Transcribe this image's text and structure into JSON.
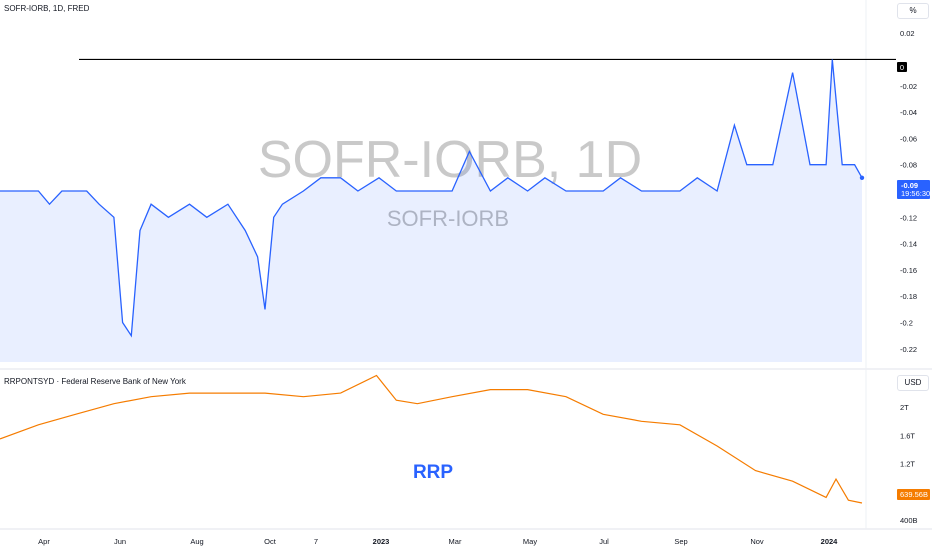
{
  "top_pane": {
    "title": "SOFR-IORB, 1D, FRED",
    "unit": "%",
    "watermark_main": "SOFR-IORB, 1D",
    "watermark_sub": "SOFR-IORB",
    "line_color": "#2962ff",
    "hline_label": "0",
    "price_label": "-0.09",
    "countdown_label": "19:56:30"
  },
  "bottom_pane": {
    "title": "RRPONTSYD · Federal Reserve Bank of New York",
    "unit": "USD",
    "annotation": "RRP",
    "line_color": "#f57c00",
    "price_label": "639.56B"
  },
  "x_axis": {
    "labels": [
      {
        "text": "Apr",
        "bold": false
      },
      {
        "text": "Jun",
        "bold": false
      },
      {
        "text": "Aug",
        "bold": false
      },
      {
        "text": "Oct",
        "bold": false
      },
      {
        "text": "7",
        "bold": false
      },
      {
        "text": "2023",
        "bold": true
      },
      {
        "text": "Mar",
        "bold": false
      },
      {
        "text": "May",
        "bold": false
      },
      {
        "text": "Jul",
        "bold": false
      },
      {
        "text": "Sep",
        "bold": false
      },
      {
        "text": "Nov",
        "bold": false
      },
      {
        "text": "2024",
        "bold": true
      }
    ]
  },
  "chart_data": [
    {
      "type": "area",
      "title": "SOFR-IORB, 1D, FRED",
      "xlabel": "",
      "ylabel": "%",
      "ylim": [
        -0.23,
        0.03
      ],
      "yticks": [
        0.02,
        0,
        -0.02,
        -0.04,
        -0.06,
        -0.08,
        -0.1,
        -0.12,
        -0.14,
        -0.16,
        -0.18,
        -0.2,
        -0.22
      ],
      "ytick_labels": [
        "0.02",
        "",
        "-0.02",
        "-0.04",
        "-0.06",
        "-0.08",
        "",
        "-0.12",
        "-0.14",
        "-0.16",
        "-0.18",
        "-0.2",
        "-0.22"
      ],
      "horizontal_line": 0,
      "last_value": -0.09,
      "x": [
        "2022-03",
        "2022-04-01",
        "2022-04-10",
        "2022-04-20",
        "2022-05-01",
        "2022-05-10",
        "2022-05-20",
        "2022-06-01",
        "2022-06-08",
        "2022-06-15",
        "2022-06-22",
        "2022-07-01",
        "2022-07-15",
        "2022-08-01",
        "2022-08-15",
        "2022-09-01",
        "2022-09-15",
        "2022-09-25",
        "2022-10-01",
        "2022-10-08",
        "2022-10-15",
        "2022-11-01",
        "2022-11-15",
        "2022-12-01",
        "2022-12-15",
        "2023-01-01",
        "2023-01-15",
        "2023-02-01",
        "2023-02-15",
        "2023-03-01",
        "2023-03-15",
        "2023-04-01",
        "2023-04-15",
        "2023-05-01",
        "2023-05-15",
        "2023-06-01",
        "2023-06-15",
        "2023-07-01",
        "2023-07-15",
        "2023-08-01",
        "2023-08-15",
        "2023-09-01",
        "2023-09-15",
        "2023-10-01",
        "2023-10-15",
        "2023-10-25",
        "2023-11-01",
        "2023-11-15",
        "2023-12-01",
        "2023-12-15",
        "2023-12-28",
        "2024-01-02",
        "2024-01-10",
        "2024-01-20",
        "2024-01-26"
      ],
      "values": [
        -0.1,
        -0.1,
        -0.11,
        -0.1,
        -0.1,
        -0.1,
        -0.11,
        -0.12,
        -0.2,
        -0.21,
        -0.13,
        -0.11,
        -0.12,
        -0.11,
        -0.12,
        -0.11,
        -0.13,
        -0.15,
        -0.19,
        -0.12,
        -0.11,
        -0.1,
        -0.09,
        -0.09,
        -0.1,
        -0.09,
        -0.1,
        -0.1,
        -0.1,
        -0.1,
        -0.07,
        -0.1,
        -0.09,
        -0.1,
        -0.09,
        -0.1,
        -0.1,
        -0.1,
        -0.09,
        -0.1,
        -0.1,
        -0.1,
        -0.09,
        -0.1,
        -0.05,
        -0.08,
        -0.08,
        -0.08,
        -0.01,
        -0.08,
        -0.08,
        0,
        -0.08,
        -0.08,
        -0.09
      ]
    },
    {
      "type": "line",
      "title": "RRPONTSYD · Federal Reserve Bank of New York",
      "xlabel": "",
      "ylabel": "USD",
      "ylim": [
        0.3,
        2.5
      ],
      "yticks": [
        0.4,
        0.8,
        1.2,
        1.6,
        2.0
      ],
      "ytick_labels": [
        "400B",
        "800B",
        "1.2T",
        "1.6T",
        "2T"
      ],
      "last_value": 0.63956,
      "x": [
        "2022-03",
        "2022-04-01",
        "2022-05-01",
        "2022-06-01",
        "2022-07-01",
        "2022-08-01",
        "2022-09-01",
        "2022-10-01",
        "2022-11-01",
        "2022-12-01",
        "2022-12-30",
        "2023-01-15",
        "2023-02-01",
        "2023-03-01",
        "2023-04-01",
        "2023-05-01",
        "2023-06-01",
        "2023-07-01",
        "2023-08-01",
        "2023-09-01",
        "2023-10-01",
        "2023-11-01",
        "2023-12-01",
        "2023-12-28",
        "2024-01-05",
        "2024-01-15",
        "2024-01-26"
      ],
      "values": [
        1.55,
        1.75,
        1.9,
        2.05,
        2.15,
        2.2,
        2.2,
        2.2,
        2.15,
        2.2,
        2.45,
        2.1,
        2.05,
        2.15,
        2.25,
        2.25,
        2.15,
        1.9,
        1.8,
        1.75,
        1.45,
        1.1,
        0.95,
        0.72,
        0.98,
        0.68,
        0.64
      ]
    }
  ]
}
